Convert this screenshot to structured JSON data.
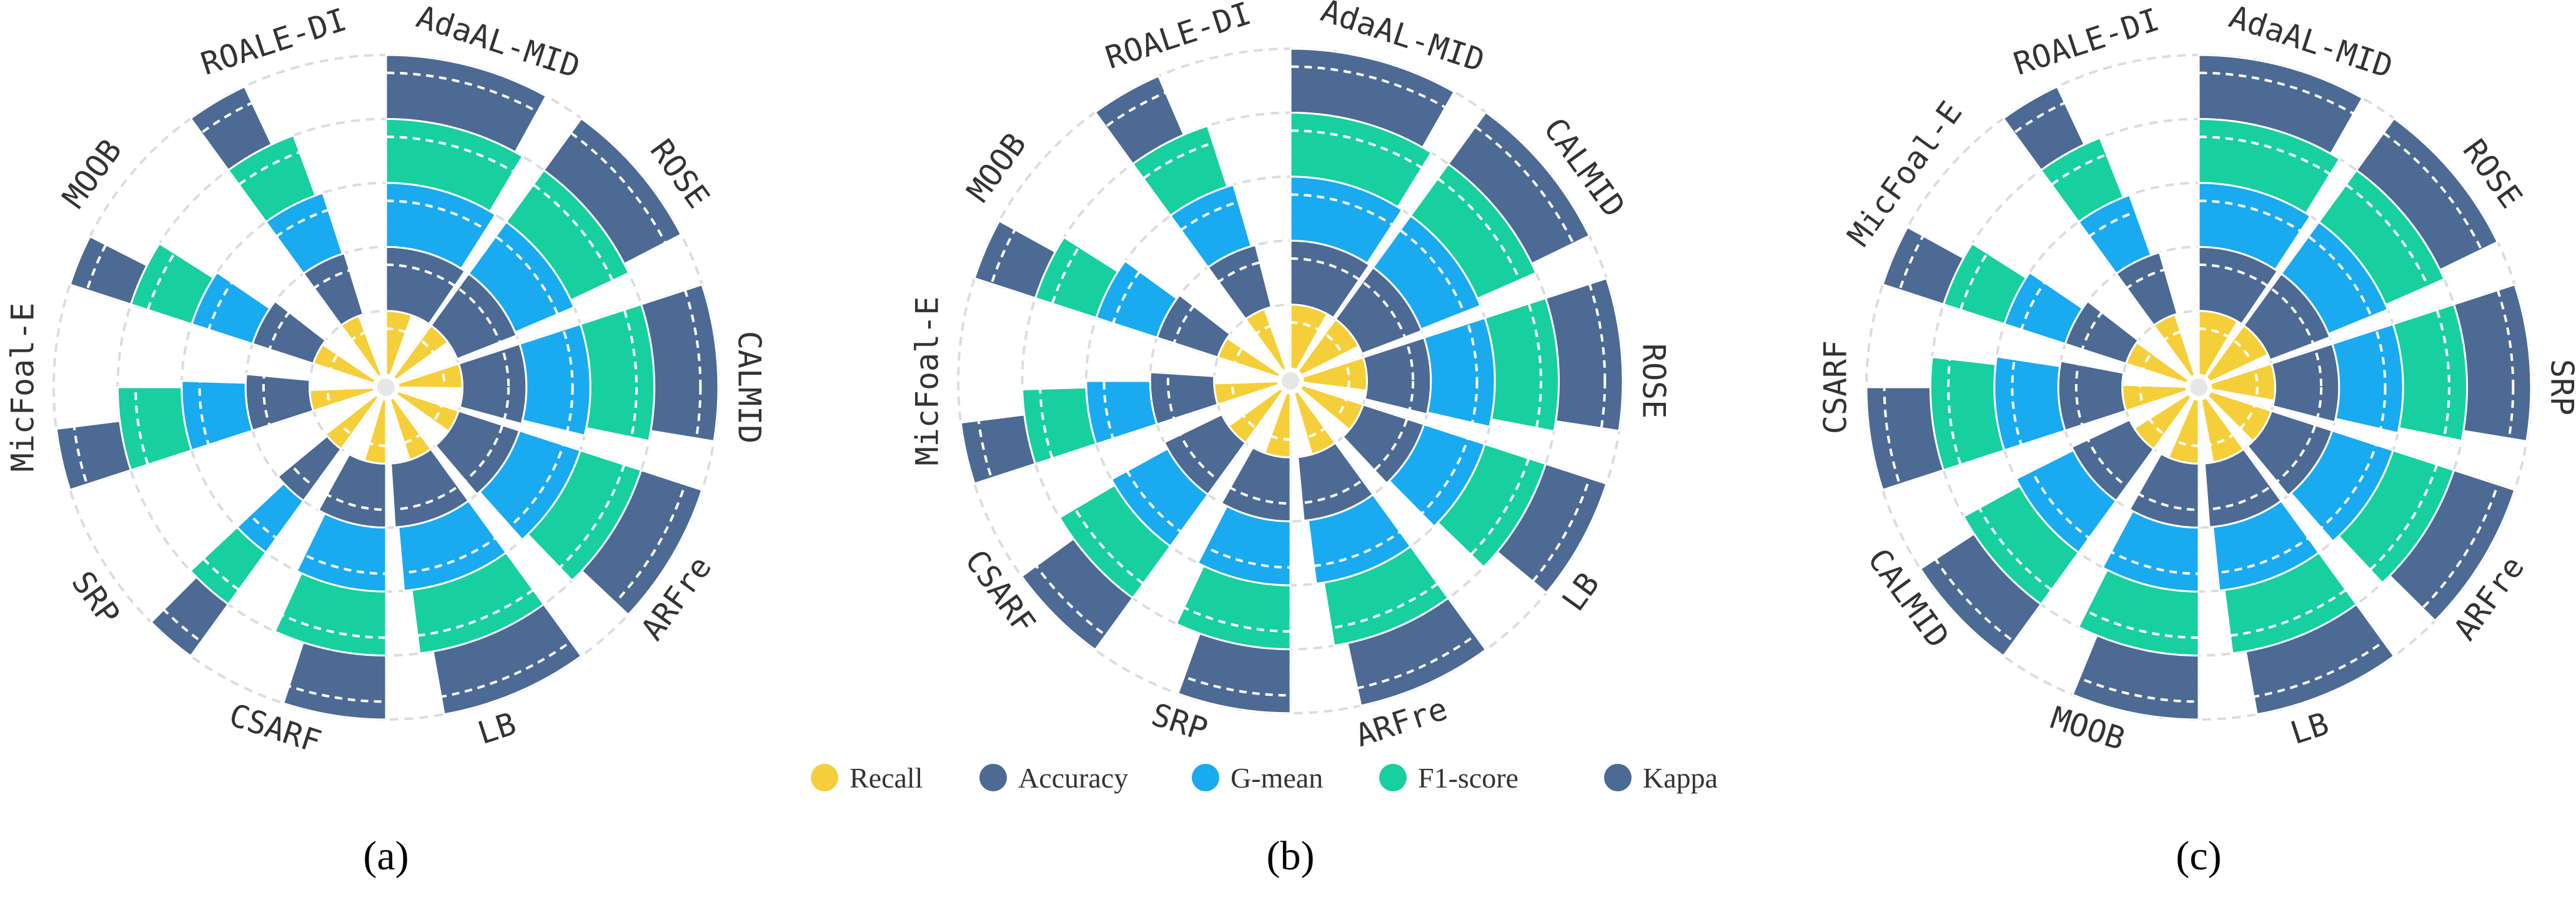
{
  "legend": [
    {
      "label": "Recall",
      "color": "#f5cf3a"
    },
    {
      "label": "Accuracy",
      "color": "#4c6a93"
    },
    {
      "label": "G-mean",
      "color": "#1aaaf0"
    },
    {
      "label": "F1-score",
      "color": "#18cf9f"
    },
    {
      "label": "Kappa",
      "color": "#4c6a93"
    }
  ],
  "chart_data": [
    {
      "type": "polar-stacked-bar",
      "panel_label": "(a)",
      "categories": [
        "AdaAL-MID",
        "ROSE",
        "CALMID",
        "ARFre",
        "LB",
        "CSARF",
        "SRP",
        "MicFoal-E",
        "MOOB",
        "ROALE-DI"
      ],
      "series": [
        {
          "name": "Recall",
          "values": [
            0.55,
            0.5,
            0.52,
            0.48,
            0.5,
            0.46,
            0.45,
            0.44,
            0.45,
            0.42
          ]
        },
        {
          "name": "Accuracy",
          "values": [
            0.95,
            0.9,
            0.92,
            0.88,
            0.9,
            0.8,
            0.4,
            0.65,
            0.55,
            0.52
          ]
        },
        {
          "name": "G-mean",
          "values": [
            0.9,
            0.86,
            0.88,
            0.84,
            0.86,
            0.72,
            0.3,
            0.55,
            0.45,
            0.5
          ]
        },
        {
          "name": "F1-score",
          "values": [
            0.85,
            0.8,
            0.82,
            0.78,
            0.8,
            0.68,
            0.3,
            0.5,
            0.4,
            0.44
          ]
        },
        {
          "name": "Kappa",
          "values": [
            0.8,
            0.74,
            0.76,
            0.7,
            0.72,
            0.5,
            0.25,
            0.3,
            0.25,
            0.3
          ]
        }
      ]
    },
    {
      "type": "polar-stacked-bar",
      "panel_label": "(b)",
      "categories": [
        "AdaAL-MID",
        "CALMID",
        "ROSE",
        "LB",
        "ARFre",
        "SRP",
        "CSARF",
        "MicFoal-E",
        "MOOB",
        "ROALE-DI"
      ],
      "series": [
        {
          "name": "Recall",
          "values": [
            0.8,
            0.75,
            0.7,
            0.6,
            0.55,
            0.55,
            0.5,
            0.45,
            0.45,
            0.45
          ]
        },
        {
          "name": "Accuracy",
          "values": [
            0.95,
            0.92,
            0.88,
            0.8,
            0.85,
            0.82,
            0.78,
            0.6,
            0.55,
            0.6
          ]
        },
        {
          "name": "G-mean",
          "values": [
            0.92,
            0.9,
            0.86,
            0.76,
            0.8,
            0.75,
            0.7,
            0.5,
            0.5,
            0.55
          ]
        },
        {
          "name": "F1-score",
          "values": [
            0.88,
            0.84,
            0.8,
            0.72,
            0.74,
            0.7,
            0.65,
            0.45,
            0.4,
            0.5
          ]
        },
        {
          "name": "Kappa",
          "values": [
            0.82,
            0.78,
            0.74,
            0.6,
            0.66,
            0.55,
            0.5,
            0.3,
            0.3,
            0.35
          ]
        }
      ]
    },
    {
      "type": "polar-stacked-bar",
      "panel_label": "(c)",
      "categories": [
        "AdaAL-MID",
        "ROSE",
        "SRP",
        "ARFre",
        "LB",
        "MOOB",
        "CALMID",
        "CSARF",
        "MicFoal-E",
        "ROALE-DI"
      ],
      "series": [
        {
          "name": "Recall",
          "values": [
            0.85,
            0.8,
            0.78,
            0.75,
            0.7,
            0.65,
            0.6,
            0.55,
            0.5,
            0.5
          ]
        },
        {
          "name": "Accuracy",
          "values": [
            0.95,
            0.92,
            0.9,
            0.9,
            0.88,
            0.82,
            0.8,
            0.8,
            0.55,
            0.55
          ]
        },
        {
          "name": "G-mean",
          "values": [
            0.92,
            0.88,
            0.86,
            0.86,
            0.84,
            0.78,
            0.76,
            0.74,
            0.45,
            0.45
          ]
        },
        {
          "name": "F1-score",
          "values": [
            0.88,
            0.84,
            0.82,
            0.8,
            0.8,
            0.74,
            0.7,
            0.68,
            0.4,
            0.4
          ]
        },
        {
          "name": "Kappa",
          "values": [
            0.82,
            0.78,
            0.76,
            0.74,
            0.72,
            0.62,
            0.58,
            0.5,
            0.3,
            0.3
          ]
        }
      ]
    }
  ]
}
